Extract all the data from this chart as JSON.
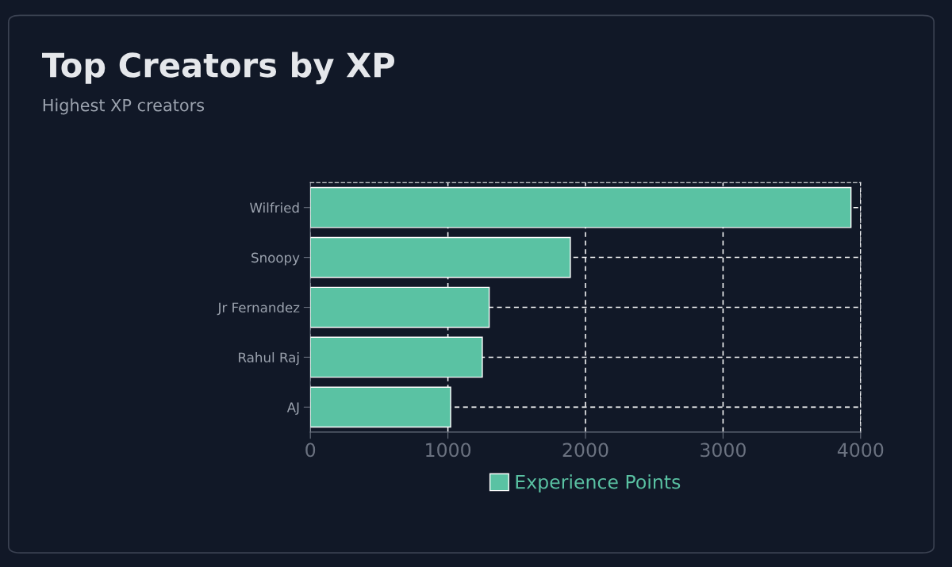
{
  "chart_data": {
    "type": "bar",
    "orientation": "horizontal",
    "title": "Top Creators by XP",
    "subtitle": "Highest XP creators",
    "categories": [
      "Wilfried",
      "Snoopy",
      "Jr Fernandez",
      "Rahul Raj",
      "AJ"
    ],
    "series": [
      {
        "name": "Experience Points",
        "color": "#5ac2a3",
        "values": [
          3930,
          1890,
          1300,
          1250,
          1020
        ]
      }
    ],
    "xlim": [
      0,
      4000
    ],
    "xticks": [
      0,
      1000,
      2000,
      3000,
      4000
    ],
    "grid": true,
    "legend": "bottom"
  }
}
